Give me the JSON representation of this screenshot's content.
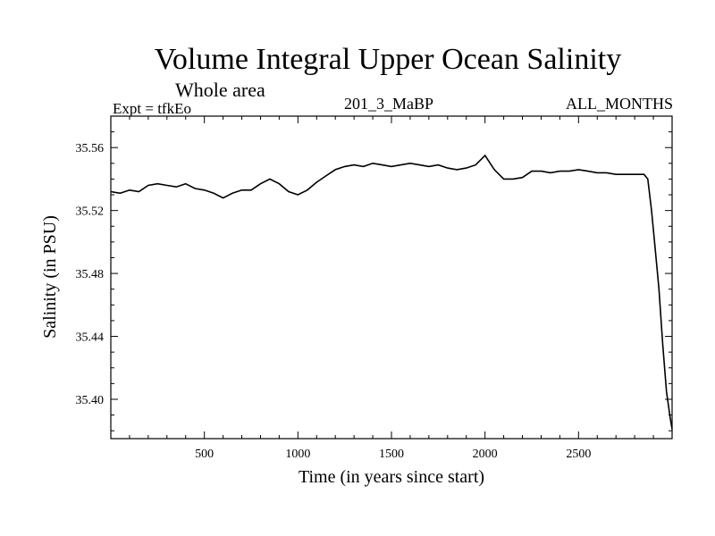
{
  "header": {
    "title": "Volume Integral Upper Ocean Salinity",
    "subtitle": "Whole area",
    "expt": "Expt = tfkEo",
    "code": "201_3_MaBP",
    "months": "ALL_MONTHS"
  },
  "chart_data": {
    "type": "line",
    "title": "Volume Integral Upper Ocean Salinity",
    "xlabel": "Time (in years since start)",
    "ylabel": "Salinity (in PSU)",
    "xlim": [
      0,
      3000
    ],
    "ylim": [
      35.375,
      35.58
    ],
    "x_ticks": [
      500,
      1000,
      1500,
      2000,
      2500
    ],
    "x_tick_labels": [
      "500",
      "1000",
      "1500",
      "2000",
      "2500"
    ],
    "y_ticks": [
      35.4,
      35.44,
      35.48,
      35.52,
      35.56
    ],
    "y_tick_labels": [
      "35.40",
      "35.44",
      "35.48",
      "35.52",
      "35.56"
    ],
    "grid": false,
    "series": [
      {
        "color": "#000000",
        "x": [
          0,
          50,
          100,
          150,
          200,
          250,
          300,
          350,
          400,
          450,
          500,
          550,
          600,
          650,
          700,
          750,
          800,
          850,
          900,
          950,
          1000,
          1050,
          1100,
          1150,
          1200,
          1250,
          1300,
          1350,
          1400,
          1450,
          1500,
          1550,
          1600,
          1650,
          1700,
          1750,
          1800,
          1850,
          1900,
          1950,
          2000,
          2050,
          2100,
          2150,
          2200,
          2250,
          2300,
          2350,
          2400,
          2450,
          2500,
          2550,
          2600,
          2650,
          2700,
          2750,
          2800,
          2850,
          2870,
          2890,
          2910,
          2930,
          2950,
          2970,
          2990,
          3000
        ],
        "y": [
          35.532,
          35.531,
          35.533,
          35.532,
          35.536,
          35.537,
          35.536,
          35.535,
          35.537,
          35.534,
          35.533,
          35.531,
          35.528,
          35.531,
          35.533,
          35.533,
          35.537,
          35.54,
          35.537,
          35.532,
          35.53,
          35.533,
          35.538,
          35.542,
          35.546,
          35.548,
          35.549,
          35.548,
          35.55,
          35.549,
          35.548,
          35.549,
          35.55,
          35.549,
          35.548,
          35.549,
          35.547,
          35.546,
          35.547,
          35.549,
          35.555,
          35.546,
          35.54,
          35.54,
          35.541,
          35.545,
          35.545,
          35.544,
          35.545,
          35.545,
          35.546,
          35.545,
          35.544,
          35.544,
          35.543,
          35.543,
          35.543,
          35.543,
          35.54,
          35.52,
          35.495,
          35.47,
          35.435,
          35.405,
          35.388,
          35.381
        ]
      }
    ]
  }
}
